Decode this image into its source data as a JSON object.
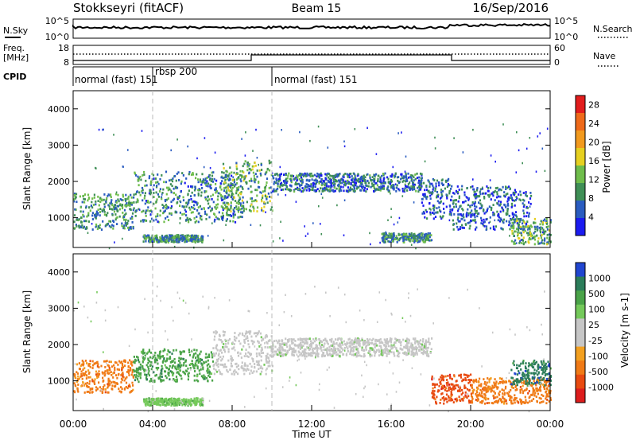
{
  "header": {
    "station": "Stokkseyri (fitACF)",
    "beam": "Beam 15",
    "date": "16/Sep/2016"
  },
  "top_panels": {
    "nsky_label": "N.Sky",
    "nsky_ticks": [
      "10^5",
      "10^0"
    ],
    "nsearch_label": "N.Search",
    "nsearch_ticks": [
      "10^5",
      "10^0"
    ],
    "freq_label": "Freq.",
    "freq_unit": "[MHz]",
    "freq_ticks": [
      "18",
      "8"
    ],
    "nave_label": "Nave",
    "nave_ticks": [
      "60",
      "0"
    ],
    "cpid_label": "CPID",
    "cpid_segments": [
      {
        "name": "normal (fast) 151",
        "start": 0.0,
        "end": 4.0
      },
      {
        "name": "rbsp 200",
        "start": 4.0,
        "end": 10.0
      },
      {
        "name": "normal (fast) 151",
        "start": 10.0,
        "end": 24.0
      }
    ]
  },
  "colors": {
    "power": [
      "#1b1bf0",
      "#2a5cc0",
      "#3f8f56",
      "#6fbd4b",
      "#e6d020",
      "#f29a1e",
      "#ef6a1a",
      "#e21d1d"
    ],
    "velocity": [
      "#2146d0",
      "#2c7d5a",
      "#4aa348",
      "#74c95a",
      "#c6c6c6",
      "#c6c6c6",
      "#f3a020",
      "#f07a16",
      "#e84a10",
      "#dd1d1d"
    ]
  },
  "chart_data": [
    {
      "type": "heatmap",
      "title": "Power",
      "xlabel": "",
      "ylabel": "Slant Range [km]",
      "x_unit": "hours UT",
      "xlim": [
        0,
        24
      ],
      "ylim": [
        180,
        4500
      ],
      "y_ticks": [
        "1000",
        "2000",
        "3000",
        "4000"
      ],
      "colorbar": {
        "label": "Power [dB]",
        "ticks": [
          "4",
          "8",
          "12",
          "16",
          "20",
          "24",
          "28"
        ],
        "range": [
          0,
          30
        ]
      },
      "regions": [
        {
          "t0": 0.0,
          "t1": 3.0,
          "r0": 700,
          "r1": 1700,
          "level": 12
        },
        {
          "t0": 3.0,
          "t1": 8.5,
          "r0": 900,
          "r1": 2300,
          "level": 11
        },
        {
          "t0": 7.5,
          "t1": 10.0,
          "r0": 1200,
          "r1": 2600,
          "level": 14
        },
        {
          "t0": 10.0,
          "t1": 17.5,
          "r0": 1750,
          "r1": 2250,
          "level": 9
        },
        {
          "t0": 17.5,
          "t1": 19.0,
          "r0": 1000,
          "r1": 2100,
          "level": 8
        },
        {
          "t0": 19.0,
          "t1": 23.0,
          "r0": 700,
          "r1": 1900,
          "level": 8
        },
        {
          "t0": 22.0,
          "t1": 24.0,
          "r0": 300,
          "r1": 1000,
          "level": 14
        },
        {
          "t0": 3.5,
          "t1": 6.5,
          "r0": 350,
          "r1": 550,
          "level": 12
        },
        {
          "t0": 15.5,
          "t1": 18.0,
          "r0": 350,
          "r1": 600,
          "level": 12
        }
      ]
    },
    {
      "type": "heatmap",
      "title": "Velocity",
      "xlabel": "Time UT",
      "ylabel": "Slant Range [km]",
      "x_unit": "hours UT",
      "xlim": [
        0,
        24
      ],
      "ylim": [
        180,
        4500
      ],
      "x_ticks": [
        "00:00",
        "04:00",
        "08:00",
        "12:00",
        "16:00",
        "20:00",
        "00:00"
      ],
      "y_ticks": [
        "1000",
        "2000",
        "3000",
        "4000"
      ],
      "colorbar": {
        "label": "Velocity [m s-1]",
        "ticks": [
          "1000",
          "500",
          "100",
          "25",
          "-25",
          "-100",
          "-500",
          "-1000"
        ]
      },
      "regions": [
        {
          "t0": 0.0,
          "t1": 3.0,
          "r0": 700,
          "r1": 1600,
          "velocity": -100
        },
        {
          "t0": 3.0,
          "t1": 7.0,
          "r0": 1000,
          "r1": 1900,
          "velocity": 100
        },
        {
          "t0": 7.0,
          "t1": 10.0,
          "r0": 1200,
          "r1": 2400,
          "velocity": 0
        },
        {
          "t0": 10.0,
          "t1": 18.0,
          "r0": 1700,
          "r1": 2200,
          "velocity": 0
        },
        {
          "t0": 18.0,
          "t1": 20.0,
          "r0": 400,
          "r1": 1200,
          "velocity": -500
        },
        {
          "t0": 20.0,
          "t1": 24.0,
          "r0": 400,
          "r1": 1100,
          "velocity": -100
        },
        {
          "t0": 22.0,
          "t1": 24.0,
          "r0": 900,
          "r1": 1600,
          "velocity": 500
        },
        {
          "t0": 3.5,
          "t1": 6.5,
          "r0": 350,
          "r1": 550,
          "velocity": 25
        }
      ]
    }
  ]
}
